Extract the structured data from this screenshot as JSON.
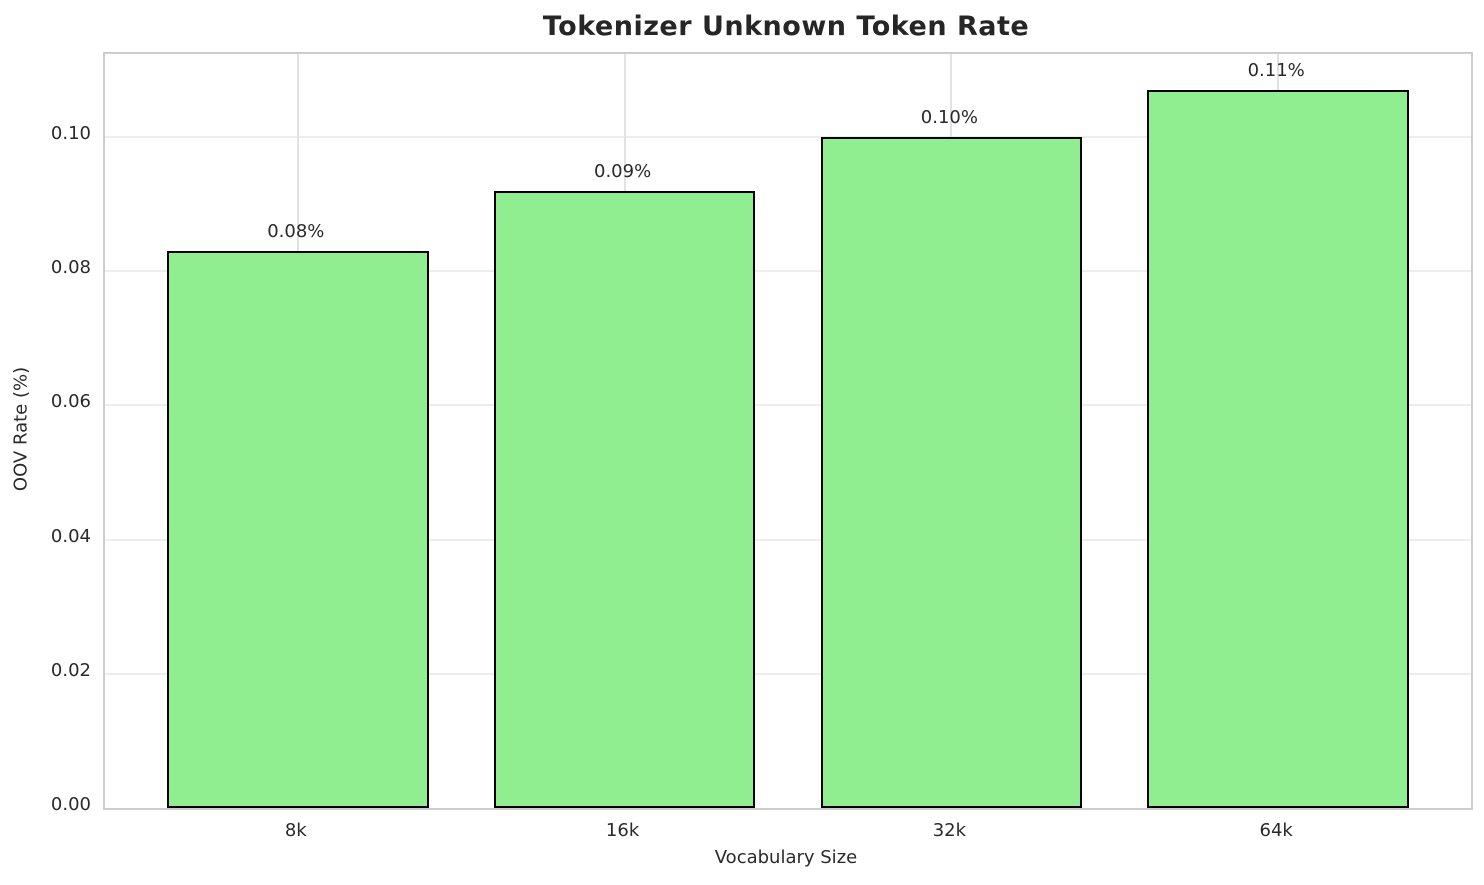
{
  "chart_data": {
    "type": "bar",
    "title": "Tokenizer Unknown Token Rate",
    "xlabel": "Vocabulary Size",
    "ylabel": "OOV Rate (%)",
    "categories": [
      "8k",
      "16k",
      "32k",
      "64k"
    ],
    "values": [
      0.083,
      0.092,
      0.1,
      0.107
    ],
    "bar_labels": [
      "0.08%",
      "0.09%",
      "0.10%",
      "0.11%"
    ],
    "yticks": [
      0.0,
      0.02,
      0.04,
      0.06,
      0.08,
      0.1
    ],
    "ytick_labels": [
      "0.00",
      "0.02",
      "0.04",
      "0.06",
      "0.08",
      "0.10"
    ],
    "ylim": [
      0,
      0.11235
    ],
    "xlim": [
      -0.59,
      3.59
    ],
    "bar_width": 0.8,
    "grid": true,
    "legend": false,
    "colors": {
      "bar_fill": "#90EE90",
      "bar_edge": "#000000",
      "grid_h": "#ededed",
      "grid_v": "#e2e2e2",
      "spine": "#cdcdcd",
      "text": "#2a2a2a",
      "background": "#ffffff"
    }
  }
}
